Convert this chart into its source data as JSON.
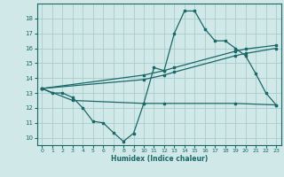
{
  "background_color": "#d0e8e8",
  "grid_color": "#a8cccc",
  "line_color": "#1a6868",
  "xlabel": "Humidex (Indice chaleur)",
  "ylim": [
    9.5,
    19.0
  ],
  "xlim": [
    -0.5,
    23.5
  ],
  "yticks": [
    10,
    11,
    12,
    13,
    14,
    15,
    16,
    17,
    18
  ],
  "xticks": [
    0,
    1,
    2,
    3,
    4,
    5,
    6,
    7,
    8,
    9,
    10,
    11,
    12,
    13,
    14,
    15,
    16,
    17,
    18,
    19,
    20,
    21,
    22,
    23
  ],
  "line1_x": [
    0,
    1,
    2,
    3,
    4,
    5,
    6,
    7,
    8,
    9,
    10,
    11,
    12,
    13,
    14,
    15,
    16,
    17,
    18,
    19,
    20,
    21,
    22,
    23
  ],
  "line1_y": [
    13.3,
    13.0,
    13.0,
    12.7,
    12.0,
    11.1,
    11.0,
    10.35,
    9.75,
    10.3,
    12.3,
    14.7,
    14.5,
    17.0,
    18.5,
    18.5,
    17.3,
    16.5,
    16.5,
    16.0,
    15.5,
    14.3,
    13.0,
    12.2
  ],
  "line2_x": [
    0,
    3,
    10,
    12,
    19,
    23
  ],
  "line2_y": [
    13.3,
    12.5,
    12.3,
    12.3,
    12.3,
    12.2
  ],
  "line3_x": [
    0,
    10,
    12,
    13,
    19,
    20,
    23
  ],
  "line3_y": [
    13.3,
    13.9,
    14.2,
    14.4,
    15.5,
    15.65,
    16.0
  ],
  "line4_x": [
    0,
    10,
    12,
    13,
    19,
    20,
    23
  ],
  "line4_y": [
    13.3,
    14.2,
    14.5,
    14.7,
    15.8,
    15.95,
    16.2
  ]
}
